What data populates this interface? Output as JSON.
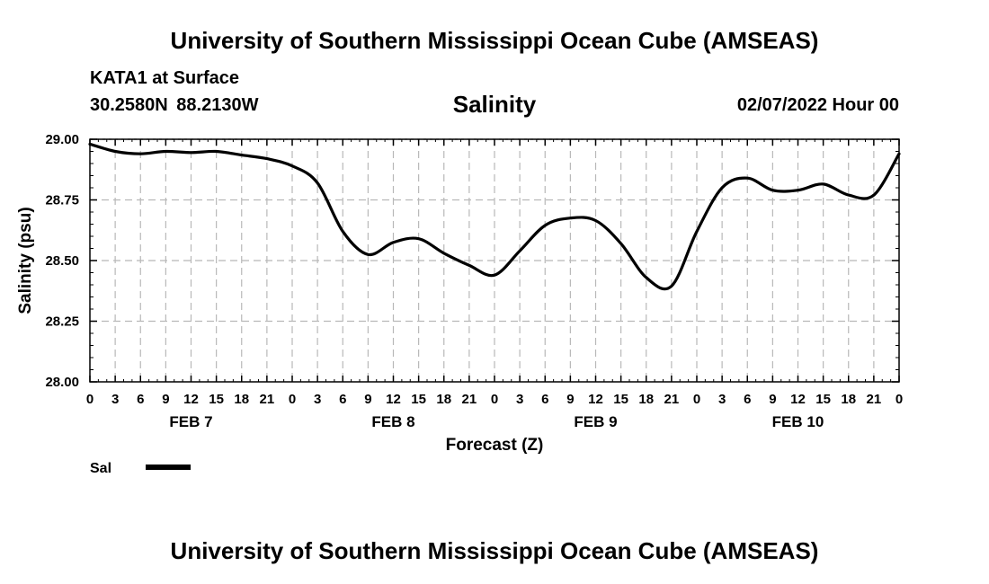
{
  "header": {
    "title": "University of Southern Mississippi Ocean Cube (AMSEAS)",
    "station": "KATA1 at Surface",
    "coords": "30.2580N  88.2130W",
    "variable": "Salinity",
    "datetime": "02/07/2022 Hour 00"
  },
  "footer": {
    "title": "University of Southern Mississippi Ocean Cube (AMSEAS)"
  },
  "chart_data": {
    "type": "line",
    "title": "Salinity",
    "xlabel": "Forecast (Z)",
    "ylabel": "Salinity (psu)",
    "ylim": [
      28.0,
      29.0
    ],
    "xlim": [
      0,
      96
    ],
    "grid": true,
    "y_ticks": [
      "28.00",
      "28.25",
      "28.50",
      "28.75",
      "29.00"
    ],
    "x_tick_hours": [
      0,
      3,
      6,
      9,
      12,
      15,
      18,
      21,
      24,
      27,
      30,
      33,
      36,
      39,
      42,
      45,
      48,
      51,
      54,
      57,
      60,
      63,
      66,
      69,
      72,
      75,
      78,
      81,
      84,
      87,
      90,
      93,
      96
    ],
    "x_tick_labels": [
      "0",
      "3",
      "6",
      "9",
      "12",
      "15",
      "18",
      "21",
      "0",
      "3",
      "6",
      "9",
      "12",
      "15",
      "18",
      "21",
      "0",
      "3",
      "6",
      "9",
      "12",
      "15",
      "18",
      "21",
      "0",
      "3",
      "6",
      "9",
      "12",
      "15",
      "18",
      "21",
      "0"
    ],
    "day_labels": [
      {
        "label": "FEB 7",
        "hour": 12
      },
      {
        "label": "FEB 8",
        "hour": 36
      },
      {
        "label": "FEB 9",
        "hour": 60
      },
      {
        "label": "FEB 10",
        "hour": 84
      }
    ],
    "legend": {
      "label": "Sal",
      "position": "bottom-left"
    },
    "series": [
      {
        "name": "Sal",
        "color": "#000000",
        "x": [
          0,
          3,
          6,
          9,
          12,
          15,
          18,
          21,
          24,
          27,
          30,
          33,
          36,
          39,
          42,
          45,
          48,
          51,
          54,
          57,
          60,
          63,
          66,
          69,
          72,
          75,
          78,
          81,
          84,
          87,
          90,
          93,
          96
        ],
        "values": [
          28.98,
          28.95,
          28.94,
          28.95,
          28.945,
          28.95,
          28.935,
          28.92,
          28.89,
          28.82,
          28.62,
          28.525,
          28.575,
          28.59,
          28.53,
          28.48,
          28.44,
          28.54,
          28.645,
          28.675,
          28.665,
          28.57,
          28.43,
          28.395,
          28.62,
          28.8,
          28.84,
          28.79,
          28.79,
          28.815,
          28.77,
          28.77,
          28.94
        ]
      }
    ]
  }
}
